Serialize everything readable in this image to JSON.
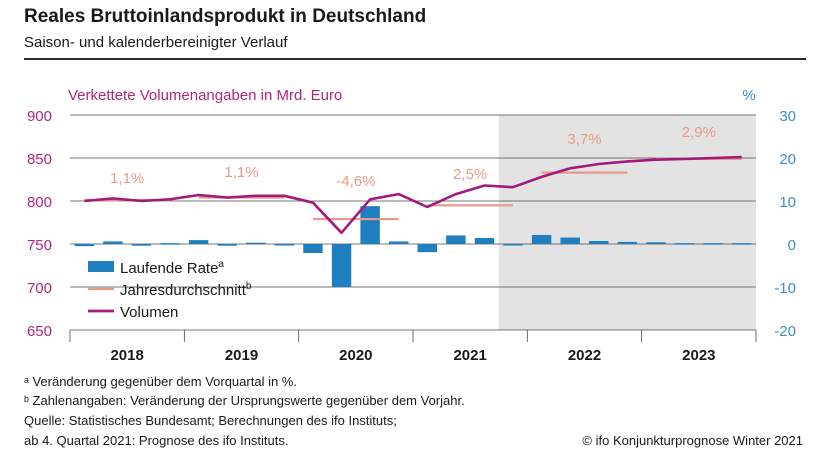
{
  "header": {
    "title": "Reales Bruttoinlandsprodukt in Deutschland",
    "subtitle": "Saison- und kalenderbereinigter Verlauf"
  },
  "chart_data": {
    "type": "bar",
    "left_axis_label": "Verkettete Volumenangaben in Mrd. Euro",
    "right_axis_label": "%",
    "left_ylim": [
      650,
      900
    ],
    "left_ticks": [
      "900",
      "850",
      "800",
      "750",
      "700",
      "650"
    ],
    "right_ylim": [
      -20,
      30
    ],
    "right_ticks": [
      "30",
      "20",
      "10",
      "0",
      "-10",
      "-20"
    ],
    "years": [
      "2018",
      "2019",
      "2020",
      "2021",
      "2022",
      "2023"
    ],
    "forecast_start": "2021 Q4",
    "grid": true,
    "legend": [
      "Laufende Rate",
      "Jahresdurchschnitt",
      "Volumen"
    ],
    "legend_superscripts": [
      "a",
      "b",
      ""
    ],
    "legend_position": "bottom-left",
    "colors": {
      "bars": "#1f7fc0",
      "volume": "#a31a7f",
      "annual_avg": "#e89a8a",
      "left_axis": "#b0267f",
      "right_axis": "#3a8fc9",
      "forecast_shade": "#e3e3e3"
    },
    "quarters": [
      "2018 Q1",
      "2018 Q2",
      "2018 Q3",
      "2018 Q4",
      "2019 Q1",
      "2019 Q2",
      "2019 Q3",
      "2019 Q4",
      "2020 Q1",
      "2020 Q2",
      "2020 Q3",
      "2020 Q4",
      "2021 Q1",
      "2021 Q2",
      "2021 Q3",
      "2021 Q4",
      "2022 Q1",
      "2022 Q2",
      "2022 Q3",
      "2022 Q4",
      "2023 Q1",
      "2023 Q2",
      "2023 Q3",
      "2023 Q4"
    ],
    "series": [
      {
        "name": "Laufende Rate",
        "axis": "right",
        "values": [
          -0.5,
          0.6,
          -0.4,
          0.2,
          0.9,
          -0.4,
          0.3,
          -0.1,
          -2.1,
          -10.0,
          8.8,
          0.6,
          -1.9,
          2.0,
          1.4,
          -0.3,
          2.1,
          1.5,
          0.7,
          0.5,
          0.4,
          0.2,
          0.2,
          0.2
        ]
      },
      {
        "name": "Volumen",
        "axis": "left",
        "values": [
          800,
          803,
          800,
          802,
          807,
          804,
          806,
          806,
          798,
          763,
          802,
          808,
          793,
          808,
          818,
          816,
          828,
          838,
          843,
          846,
          848,
          849,
          850,
          851
        ]
      },
      {
        "name": "Jahresdurchschnitt",
        "axis": "left",
        "annual_values": [
          801,
          804,
          779,
          795,
          833,
          849
        ],
        "labels": [
          "1,1%",
          "1,1%",
          "-4,6%",
          "2,5%",
          "3,7%",
          "2,9%"
        ]
      }
    ]
  },
  "footnotes": {
    "note_a": "ᵃ Veränderung gegenüber dem Vorquartal in %.",
    "note_b": "ᵇ Zahlenangaben: Veränderung der Ursprungswerte gegenüber dem Vorjahr.",
    "source": "Quelle: Statistisches Bundesamt; Berechnungen des ifo Instituts;",
    "forecast": "ab 4. Quartal 2021: Prognose des ifo Instituts.",
    "copyright": "© ifo Konjunkturprognose Winter 2021"
  }
}
